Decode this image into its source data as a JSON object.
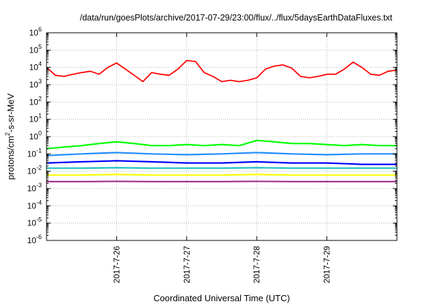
{
  "chart_data": {
    "type": "line",
    "title": "/data/run/goesPlots/archive/2017-07-29/23:00/flux/../flux/5daysEarthDataFluxes.txt",
    "xlabel": "Coordinated Universal Time (UTC)",
    "ylabel": "protons/cm²-s-sr-MeV",
    "ylabel_parts": {
      "base": "protons/cm",
      "sup": "2",
      "rest": "-s-sr-MeV"
    },
    "y_scale": "log",
    "ylim": [
      1e-06,
      1000000.0
    ],
    "y_ticks": [
      {
        "exp": -6,
        "base": "10",
        "sup": "-6"
      },
      {
        "exp": -5,
        "base": "10",
        "sup": "-5"
      },
      {
        "exp": -4,
        "base": "10",
        "sup": "-4"
      },
      {
        "exp": -3,
        "base": "10",
        "sup": "-3"
      },
      {
        "exp": -2,
        "base": "10",
        "sup": "-2"
      },
      {
        "exp": -1,
        "base": "10",
        "sup": "-1"
      },
      {
        "exp": 0,
        "base": "10",
        "sup": "0"
      },
      {
        "exp": 1,
        "base": "10",
        "sup": "1"
      },
      {
        "exp": 2,
        "base": "10",
        "sup": "2"
      },
      {
        "exp": 3,
        "base": "10",
        "sup": "3"
      },
      {
        "exp": 4,
        "base": "10",
        "sup": "4"
      },
      {
        "exp": 5,
        "base": "10",
        "sup": "5"
      },
      {
        "exp": 6,
        "base": "10",
        "sup": "6"
      }
    ],
    "xlim": [
      "2017-07-25 00:00",
      "2017-07-30 00:00"
    ],
    "x_ticks": [
      {
        "label": "2017-7-26",
        "date": "2017-07-26"
      },
      {
        "label": "2017-7-27",
        "date": "2017-07-27"
      },
      {
        "label": "2017-7-28",
        "date": "2017-07-28"
      },
      {
        "label": "2017-7-29",
        "date": "2017-07-29"
      }
    ],
    "grid": true,
    "series": [
      {
        "color": "#ff0000",
        "x": [
          "2017-07-25 00:00",
          "2017-07-25 03:00",
          "2017-07-25 06:00",
          "2017-07-25 09:00",
          "2017-07-25 12:00",
          "2017-07-25 15:00",
          "2017-07-25 18:00",
          "2017-07-25 21:00",
          "2017-07-26 00:00",
          "2017-07-26 03:00",
          "2017-07-26 06:00",
          "2017-07-26 09:00",
          "2017-07-26 12:00",
          "2017-07-26 15:00",
          "2017-07-26 18:00",
          "2017-07-26 21:00",
          "2017-07-27 00:00",
          "2017-07-27 03:00",
          "2017-07-27 06:00",
          "2017-07-27 09:00",
          "2017-07-27 12:00",
          "2017-07-27 15:00",
          "2017-07-27 18:00",
          "2017-07-27 21:00",
          "2017-07-28 00:00",
          "2017-07-28 03:00",
          "2017-07-28 06:00",
          "2017-07-28 09:00",
          "2017-07-28 12:00",
          "2017-07-28 15:00",
          "2017-07-28 18:00",
          "2017-07-28 21:00",
          "2017-07-29 00:00",
          "2017-07-29 03:00",
          "2017-07-29 06:00",
          "2017-07-29 09:00",
          "2017-07-29 12:00",
          "2017-07-29 15:00",
          "2017-07-29 18:00",
          "2017-07-29 21:00",
          "2017-07-30 00:00"
        ],
        "y": [
          10000,
          3500,
          3000,
          4000,
          5000,
          6000,
          4000,
          10000,
          18000,
          8000,
          3500,
          1500,
          5000,
          4000,
          3500,
          8000,
          25000,
          22000,
          5000,
          3000,
          1500,
          1800,
          1500,
          1800,
          2500,
          8000,
          12000,
          14000,
          9000,
          3000,
          2500,
          3000,
          4000,
          4000,
          8000,
          20000,
          10000,
          4000,
          3500,
          6000,
          7000
        ]
      },
      {
        "color": "#00ff00",
        "x": [
          "2017-07-25 00:00",
          "2017-07-25 06:00",
          "2017-07-25 12:00",
          "2017-07-25 18:00",
          "2017-07-26 00:00",
          "2017-07-26 06:00",
          "2017-07-26 12:00",
          "2017-07-26 18:00",
          "2017-07-27 00:00",
          "2017-07-27 06:00",
          "2017-07-27 12:00",
          "2017-07-27 18:00",
          "2017-07-28 00:00",
          "2017-07-28 06:00",
          "2017-07-28 12:00",
          "2017-07-28 18:00",
          "2017-07-29 00:00",
          "2017-07-29 06:00",
          "2017-07-29 12:00",
          "2017-07-29 18:00",
          "2017-07-30 00:00"
        ],
        "y": [
          0.2,
          0.25,
          0.3,
          0.4,
          0.5,
          0.4,
          0.3,
          0.3,
          0.35,
          0.3,
          0.35,
          0.3,
          0.6,
          0.5,
          0.4,
          0.4,
          0.35,
          0.3,
          0.35,
          0.3,
          0.3
        ]
      },
      {
        "color": "#1e8cff",
        "x": [
          "2017-07-25 00:00",
          "2017-07-25 12:00",
          "2017-07-26 00:00",
          "2017-07-26 12:00",
          "2017-07-27 00:00",
          "2017-07-27 12:00",
          "2017-07-28 00:00",
          "2017-07-28 12:00",
          "2017-07-29 00:00",
          "2017-07-29 12:00",
          "2017-07-30 00:00"
        ],
        "y": [
          0.08,
          0.1,
          0.12,
          0.1,
          0.09,
          0.1,
          0.12,
          0.1,
          0.09,
          0.1,
          0.1
        ]
      },
      {
        "color": "#0000ff",
        "x": [
          "2017-07-25 00:00",
          "2017-07-25 12:00",
          "2017-07-26 00:00",
          "2017-07-26 12:00",
          "2017-07-27 00:00",
          "2017-07-27 12:00",
          "2017-07-28 00:00",
          "2017-07-28 12:00",
          "2017-07-29 00:00",
          "2017-07-29 12:00",
          "2017-07-30 00:00"
        ],
        "y": [
          0.03,
          0.035,
          0.04,
          0.035,
          0.03,
          0.03,
          0.035,
          0.03,
          0.03,
          0.025,
          0.025
        ]
      },
      {
        "color": "#20c0c0",
        "x": [
          "2017-07-25 00:00",
          "2017-07-25 12:00",
          "2017-07-26 00:00",
          "2017-07-26 12:00",
          "2017-07-27 00:00",
          "2017-07-27 12:00",
          "2017-07-28 00:00",
          "2017-07-28 12:00",
          "2017-07-29 00:00",
          "2017-07-29 12:00",
          "2017-07-30 00:00"
        ],
        "y": [
          0.015,
          0.015,
          0.016,
          0.015,
          0.015,
          0.015,
          0.016,
          0.015,
          0.015,
          0.015,
          0.015
        ]
      },
      {
        "color": "#ffff00",
        "x": [
          "2017-07-25 00:00",
          "2017-07-25 12:00",
          "2017-07-26 00:00",
          "2017-07-26 12:00",
          "2017-07-27 00:00",
          "2017-07-27 12:00",
          "2017-07-28 00:00",
          "2017-07-28 12:00",
          "2017-07-29 00:00",
          "2017-07-29 12:00",
          "2017-07-30 00:00"
        ],
        "y": [
          0.006,
          0.006,
          0.0065,
          0.006,
          0.006,
          0.006,
          0.0065,
          0.006,
          0.006,
          0.006,
          0.006
        ]
      },
      {
        "color": "#a0328c",
        "x": [
          "2017-07-25 00:00",
          "2017-07-25 12:00",
          "2017-07-26 00:00",
          "2017-07-26 12:00",
          "2017-07-27 00:00",
          "2017-07-27 12:00",
          "2017-07-28 00:00",
          "2017-07-28 12:00",
          "2017-07-29 00:00",
          "2017-07-29 12:00",
          "2017-07-30 00:00"
        ],
        "y": [
          0.0025,
          0.0025,
          0.0026,
          0.0025,
          0.0025,
          0.0025,
          0.0026,
          0.0025,
          0.0025,
          0.0025,
          0.0025
        ]
      }
    ]
  }
}
